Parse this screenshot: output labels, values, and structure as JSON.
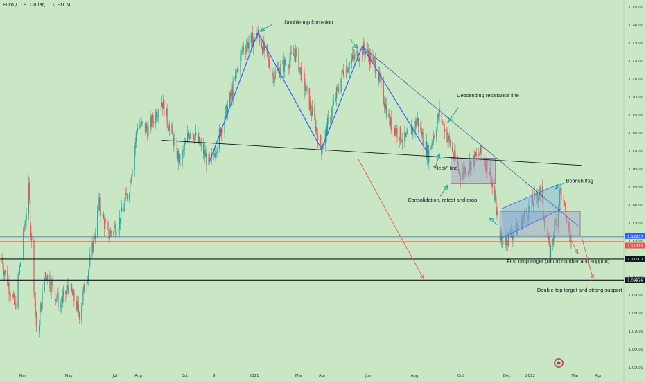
{
  "header": {
    "symbol_title": "Euro / U.S. Dollar, 1D, FXCM"
  },
  "chart_data": {
    "type": "candlestick",
    "price_axis": {
      "ticks": [
        "1.25000",
        "1.24000",
        "1.23000",
        "1.22000",
        "1.21000",
        "1.20000",
        "1.19000",
        "1.18000",
        "1.17000",
        "1.16000",
        "1.15000",
        "1.14000",
        "1.13000",
        "1.12000",
        "1.11000",
        "1.10000",
        "1.09000",
        "1.08000",
        "1.07000",
        "1.06000",
        "1.05000"
      ],
      "range": [
        1.047,
        1.252
      ]
    },
    "time_axis": {
      "labels": [
        "Mar",
        "May",
        "Jul",
        "Aug",
        "Oct",
        "9",
        "2021",
        "Mar",
        "Apr",
        "Jun",
        "Aug",
        "Oct",
        "Dec",
        "2022",
        "Mar",
        "Apr"
      ],
      "range": [
        "2020-02-01",
        "2022-04-20"
      ]
    },
    "price_badges": [
      {
        "value": "1.12237",
        "color": "#2962ff"
      },
      {
        "value": "1.11979",
        "color": "#ef5350"
      },
      {
        "value": "1.11001",
        "color": "#131722"
      },
      {
        "value": "1.09836",
        "color": "#131722"
      }
    ],
    "horizontal_levels": [
      {
        "price": 1.12237,
        "color": "#2962ff"
      },
      {
        "price": 1.11979,
        "color": "#ef5350"
      },
      {
        "price": 1.11001,
        "color": "#131722"
      },
      {
        "price": 1.09836,
        "color": "#131722"
      }
    ],
    "path_points": [
      [
        "2020-02-01",
        1.111
      ],
      [
        "2020-02-20",
        1.083
      ],
      [
        "2020-03-09",
        1.148
      ],
      [
        "2020-03-20",
        1.066
      ],
      [
        "2020-03-31",
        1.103
      ],
      [
        "2020-04-20",
        1.084
      ],
      [
        "2020-05-01",
        1.095
      ],
      [
        "2020-05-15",
        1.08
      ],
      [
        "2020-06-01",
        1.115
      ],
      [
        "2020-06-10",
        1.14
      ],
      [
        "2020-06-22",
        1.123
      ],
      [
        "2020-07-06",
        1.13
      ],
      [
        "2020-07-20",
        1.15
      ],
      [
        "2020-07-31",
        1.185
      ],
      [
        "2020-08-14",
        1.182
      ],
      [
        "2020-09-01",
        1.198
      ],
      [
        "2020-09-25",
        1.163
      ],
      [
        "2020-10-09",
        1.183
      ],
      [
        "2020-11-04",
        1.162
      ],
      [
        "2020-12-01",
        1.2
      ],
      [
        "2020-12-17",
        1.227
      ],
      [
        "2021-01-06",
        1.235
      ],
      [
        "2021-01-26",
        1.212
      ],
      [
        "2021-02-25",
        1.224
      ],
      [
        "2021-03-31",
        1.172
      ],
      [
        "2021-04-29",
        1.215
      ],
      [
        "2021-05-25",
        1.227
      ],
      [
        "2021-06-10",
        1.218
      ],
      [
        "2021-06-30",
        1.185
      ],
      [
        "2021-07-20",
        1.176
      ],
      [
        "2021-08-05",
        1.187
      ],
      [
        "2021-08-19",
        1.168
      ],
      [
        "2021-09-03",
        1.191
      ],
      [
        "2021-09-30",
        1.157
      ],
      [
        "2021-10-28",
        1.169
      ],
      [
        "2021-11-09",
        1.158
      ],
      [
        "2021-11-24",
        1.119
      ],
      [
        "2021-12-15",
        1.127
      ],
      [
        "2022-01-14",
        1.148
      ],
      [
        "2022-01-27",
        1.113
      ],
      [
        "2022-02-10",
        1.148
      ],
      [
        "2022-02-24",
        1.119
      ]
    ],
    "annotations": [
      {
        "label": "Double-top formation",
        "date": "2021-02-10",
        "price": 1.2406,
        "anchor": "start"
      },
      {
        "label": "Descending resistance line",
        "date": "2021-09-26",
        "price": 1.2,
        "anchor": "start"
      },
      {
        "label": "\"Neck\" line",
        "date": "2021-08-25",
        "price": 1.1596,
        "anchor": "start"
      },
      {
        "label": "Bearish flag",
        "date": "2022-02-17",
        "price": 1.1525,
        "anchor": "start"
      },
      {
        "label": "Consolidation, retest and drop",
        "date": "2021-07-23",
        "price": 1.142,
        "anchor": "start"
      },
      {
        "label": "First drop target (round number and support)",
        "date": "2021-12-01",
        "price": 1.1079,
        "anchor": "start"
      },
      {
        "label": "Double-top target and strong support",
        "date": "2022-01-10",
        "price": 1.092,
        "anchor": "start"
      }
    ],
    "drawings": {
      "double_top_legs": [
        [
          "2020-11-02",
          1.163
        ],
        [
          "2021-01-06",
          1.2358
        ],
        [
          "2021-03-31",
          1.171
        ],
        [
          "2021-05-24",
          1.2282
        ],
        [
          "2021-08-19",
          1.1685
        ]
      ],
      "neckline": [
        [
          "2020-09-01",
          1.176
        ],
        [
          "2022-03-10",
          1.162
        ]
      ],
      "descending_resistance": [
        [
          "2021-05-24",
          1.228
        ],
        [
          "2022-03-05",
          1.1285
        ]
      ],
      "flag_channel_upper": [
        [
          "2021-11-24",
          1.138
        ],
        [
          "2022-02-10",
          1.152
        ]
      ],
      "flag_channel_lower": [
        [
          "2021-11-26",
          1.122
        ],
        [
          "2022-02-12",
          1.138
        ]
      ],
      "consolidation_box": {
        "from": "2021-09-18",
        "to": "2021-11-16",
        "high": 1.166,
        "low": 1.152
      },
      "flag_box": {
        "from": "2021-11-22",
        "to": "2022-03-08",
        "high": 1.1365,
        "low": 1.123
      },
      "projection_arrows": [
        {
          "from": [
            "2021-05-18",
            1.166
          ],
          "to": [
            "2021-08-13",
            1.099
          ]
        },
        {
          "from": [
            "2022-02-22",
            1.122
          ],
          "to": [
            "2022-03-05",
            1.113
          ]
        },
        {
          "from": [
            "2022-03-10",
            1.122
          ],
          "to": [
            "2022-03-25",
            1.099
          ]
        }
      ],
      "teal_pointers": [
        {
          "from": [
            "2021-01-26",
            1.2406
          ],
          "to": [
            "2021-01-09",
            1.2365
          ]
        },
        {
          "from": [
            "2021-05-08",
            1.232
          ],
          "to": [
            "2021-05-18",
            1.2268
          ]
        },
        {
          "from": [
            "2021-09-28",
            1.194
          ],
          "to": [
            "2021-09-14",
            1.186
          ]
        },
        {
          "from": [
            "2021-08-29",
            1.1615
          ],
          "to": [
            "2021-09-03",
            1.1685
          ]
        },
        {
          "from": [
            "2021-09-04",
            1.1448
          ],
          "to": [
            "2021-09-14",
            1.151
          ]
        },
        {
          "from": [
            "2022-02-15",
            1.1525
          ],
          "to": [
            "2022-02-03",
            1.149
          ]
        },
        {
          "from": [
            "2021-11-18",
            1.129
          ],
          "to": [
            "2021-11-08",
            1.133
          ]
        }
      ]
    },
    "candle_colors": {
      "up": "#26a69a",
      "down": "#ef5350"
    },
    "colors": {
      "background": "#c9e7c4",
      "pattern_line": "#2962ff",
      "neckline": "#131722",
      "arrow": "#ef5350",
      "pointer": "#26a69a",
      "box_fill": "#9c9fc9"
    }
  }
}
